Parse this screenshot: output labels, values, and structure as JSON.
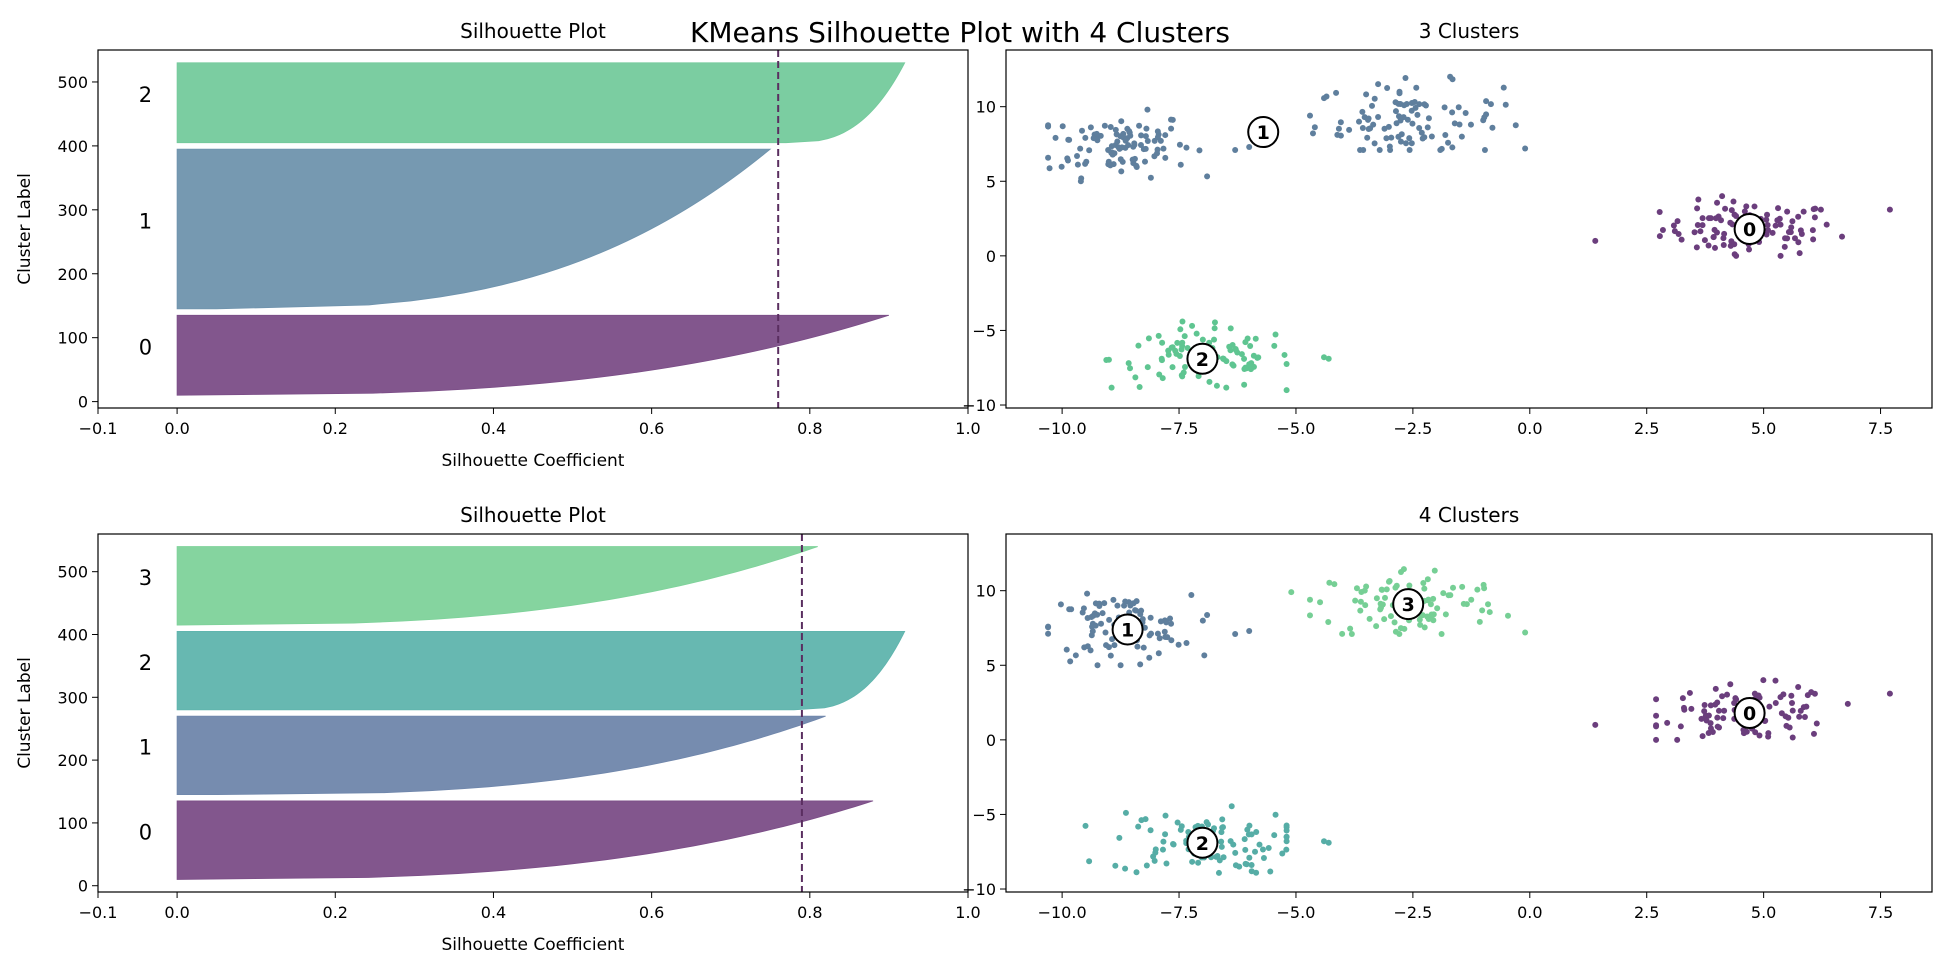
{
  "figure": {
    "suptitle": "KMeans Silhouette Plot with 4 Clusters"
  },
  "chart_data": [
    {
      "id": "sil3",
      "type": "area",
      "kind": "silhouette",
      "title": "Silhouette Plot",
      "xlabel": "Silhouette Coefficient",
      "ylabel": "Cluster Label",
      "xlim": [
        -0.1,
        1.0
      ],
      "ylim": [
        -10,
        550
      ],
      "xticks": [
        -0.1,
        0.0,
        0.2,
        0.4,
        0.6,
        0.8,
        1.0
      ],
      "xtick_labels": [
        "−0.1",
        "0.0",
        "0.2",
        "0.4",
        "0.6",
        "0.8",
        "1.0"
      ],
      "yticks": [
        0,
        100,
        200,
        300,
        400,
        500
      ],
      "yticks_labels": [
        "0",
        "100",
        "200",
        "300",
        "400",
        "500"
      ],
      "average_score": 0.76,
      "clusters": [
        {
          "label": "0",
          "y_lower": 10,
          "y_upper": 135,
          "max": 0.9,
          "min": 0.0,
          "label_y": 85,
          "color": "#7b4d87"
        },
        {
          "label": "1",
          "y_lower": 145,
          "y_upper": 395,
          "max": 0.75,
          "min": 0.05,
          "label_y": 282,
          "color": "#6f93ad"
        },
        {
          "label": "2",
          "y_lower": 405,
          "y_upper": 530,
          "max": 0.92,
          "min": 0.77,
          "label_y": 480,
          "color": "#74ca9c"
        }
      ]
    },
    {
      "id": "sc3",
      "type": "scatter",
      "title": "3 Clusters",
      "xlim": [
        -11.2,
        8.6
      ],
      "ylim": [
        -10.2,
        13.8
      ],
      "xticks": [
        -10.0,
        -7.5,
        -5.0,
        -2.5,
        0.0,
        2.5,
        5.0,
        7.5
      ],
      "xtick_labels": [
        "−10.0",
        "−7.5",
        "−5.0",
        "−2.5",
        "0.0",
        "2.5",
        "5.0",
        "7.5"
      ],
      "yticks": [
        -10,
        -5,
        0,
        5,
        10
      ],
      "ytick_labels": [
        "−10",
        "−5",
        "0",
        "5",
        "10"
      ],
      "groups": [
        {
          "label": "0",
          "color": "#6b3e7d",
          "center": [
            4.7,
            1.8
          ],
          "marker_label": "0",
          "count": 100,
          "x_range": [
            2.7,
            6.8
          ],
          "y_range": [
            0.0,
            4.0
          ],
          "outliers": [
            [
              1.4,
              1.0
            ],
            [
              7.7,
              3.1
            ]
          ]
        },
        {
          "label": "1",
          "color": "#5f7f9d",
          "center": [
            -8.8,
            7.5
          ],
          "count": 100,
          "x_range": [
            -10.3,
            -6.9
          ],
          "y_range": [
            5.0,
            9.8
          ],
          "outliers": [
            [
              -6.3,
              7.1
            ],
            [
              -6.0,
              7.3
            ]
          ]
        },
        {
          "label": "1",
          "color": "#5f7f9d",
          "center": [
            -2.6,
            9.1
          ],
          "count": 100,
          "x_range": [
            -4.7,
            -0.3
          ],
          "y_range": [
            7.1,
            12.6
          ],
          "outliers": [
            [
              -0.1,
              7.2
            ]
          ]
        },
        {
          "label": "2",
          "color": "#5fc591",
          "center": [
            -7.0,
            -6.9
          ],
          "count": 100,
          "x_range": [
            -9.5,
            -5.2
          ],
          "y_range": [
            -9.0,
            -4.4
          ],
          "outliers": [
            [
              -4.4,
              -6.8
            ],
            [
              -4.3,
              -6.9
            ]
          ]
        }
      ],
      "markers": [
        {
          "text": "0",
          "x": 4.7,
          "y": 1.8
        },
        {
          "text": "1",
          "x": -5.7,
          "y": 8.3
        },
        {
          "text": "2",
          "x": -7.0,
          "y": -6.9
        }
      ]
    },
    {
      "id": "sil4",
      "type": "area",
      "kind": "silhouette",
      "title": "Silhouette Plot",
      "xlabel": "Silhouette Coefficient",
      "ylabel": "Cluster Label",
      "xlim": [
        -0.1,
        1.0
      ],
      "ylim": [
        -10,
        560
      ],
      "xticks": [
        -0.1,
        0.0,
        0.2,
        0.4,
        0.6,
        0.8,
        1.0
      ],
      "xtick_labels": [
        "−0.1",
        "0.0",
        "0.2",
        "0.4",
        "0.6",
        "0.8",
        "1.0"
      ],
      "yticks": [
        0,
        100,
        200,
        300,
        400,
        500
      ],
      "yticks_labels": [
        "0",
        "100",
        "200",
        "300",
        "400",
        "500"
      ],
      "average_score": 0.79,
      "clusters": [
        {
          "label": "0",
          "y_lower": 10,
          "y_upper": 135,
          "max": 0.88,
          "min": 0.0,
          "label_y": 85,
          "color": "#7b4d87"
        },
        {
          "label": "1",
          "y_lower": 145,
          "y_upper": 270,
          "max": 0.82,
          "min": 0.05,
          "label_y": 220,
          "color": "#6f86ab"
        },
        {
          "label": "2",
          "y_lower": 280,
          "y_upper": 405,
          "max": 0.92,
          "min": 0.78,
          "label_y": 355,
          "color": "#5fb4ad"
        },
        {
          "label": "3",
          "y_lower": 415,
          "y_upper": 540,
          "max": 0.81,
          "min": 0.0,
          "label_y": 490,
          "color": "#7ed29a"
        }
      ]
    },
    {
      "id": "sc4",
      "type": "scatter",
      "title": "4 Clusters",
      "xlim": [
        -11.2,
        8.6
      ],
      "ylim": [
        -10.2,
        13.8
      ],
      "xticks": [
        -10.0,
        -7.5,
        -5.0,
        -2.5,
        0.0,
        2.5,
        5.0,
        7.5
      ],
      "xtick_labels": [
        "−10.0",
        "−7.5",
        "−5.0",
        "−2.5",
        "0.0",
        "2.5",
        "5.0",
        "7.5"
      ],
      "yticks": [
        -10,
        -5,
        0,
        5,
        10
      ],
      "ytick_labels": [
        "−10",
        "−5",
        "0",
        "5",
        "10"
      ],
      "groups": [
        {
          "label": "0",
          "color": "#6b3e7d",
          "center": [
            4.7,
            1.8
          ],
          "count": 100,
          "x_range": [
            2.7,
            6.8
          ],
          "y_range": [
            0.0,
            4.0
          ],
          "outliers": [
            [
              1.4,
              1.0
            ],
            [
              7.7,
              3.1
            ]
          ]
        },
        {
          "label": "1",
          "color": "#5f7f9d",
          "center": [
            -8.8,
            7.5
          ],
          "count": 100,
          "x_range": [
            -10.3,
            -6.9
          ],
          "y_range": [
            5.0,
            9.8
          ],
          "outliers": [
            [
              -6.3,
              7.1
            ],
            [
              -6.0,
              7.3
            ]
          ]
        },
        {
          "label": "3",
          "color": "#76cf95",
          "center": [
            -2.6,
            9.1
          ],
          "count": 100,
          "x_range": [
            -4.7,
            -0.3
          ],
          "y_range": [
            7.1,
            12.6
          ],
          "outliers": [
            [
              -0.1,
              7.2
            ],
            [
              -5.1,
              9.9
            ]
          ]
        },
        {
          "label": "2",
          "color": "#56ada6",
          "center": [
            -7.0,
            -6.9
          ],
          "count": 100,
          "x_range": [
            -9.5,
            -5.2
          ],
          "y_range": [
            -9.0,
            -4.4
          ],
          "outliers": [
            [
              -4.4,
              -6.8
            ],
            [
              -4.3,
              -6.9
            ]
          ]
        }
      ],
      "markers": [
        {
          "text": "0",
          "x": 4.7,
          "y": 1.8
        },
        {
          "text": "1",
          "x": -8.6,
          "y": 7.4
        },
        {
          "text": "3",
          "x": -2.6,
          "y": 9.1
        },
        {
          "text": "2",
          "x": -7.0,
          "y": -6.9
        }
      ]
    }
  ]
}
